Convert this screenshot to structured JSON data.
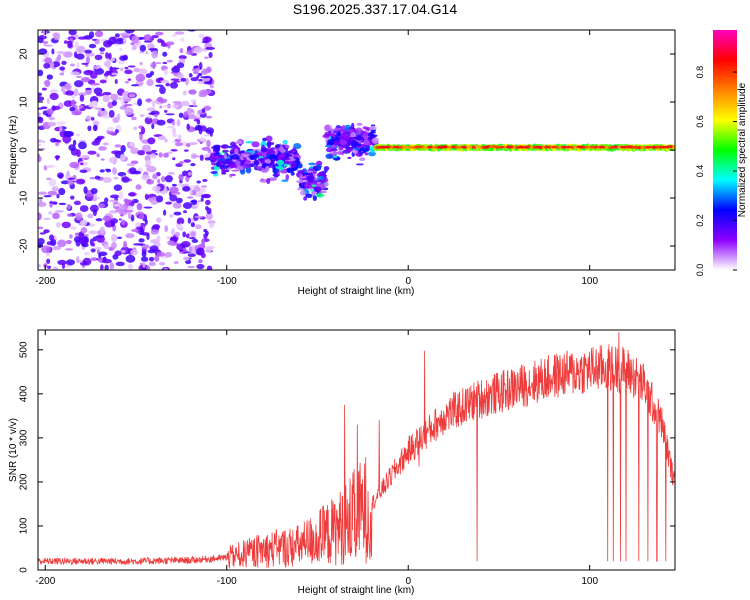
{
  "title": "S196.2025.337.17.04.G14",
  "chart_data": [
    {
      "type": "heatmap",
      "title": "S196.2025.337.17.04.G14",
      "xlabel": "Height of straight line (km)",
      "ylabel": "Frequency (Hz)",
      "xlim": [
        -204,
        147
      ],
      "ylim": [
        -25,
        25
      ],
      "xticks": [
        -200,
        -100,
        0,
        100
      ],
      "yticks": [
        -20,
        -10,
        0,
        10,
        20
      ],
      "colorbar": {
        "label": "Normalized spectral amplitude",
        "range": [
          0,
          0.97
        ],
        "ticks": [
          "0.0",
          "0.2",
          "0.4",
          "0.6",
          "0.8"
        ],
        "colors": [
          "#ffffff",
          "#8c00ff",
          "#0000ff",
          "#00ffff",
          "#00ff00",
          "#ffff00",
          "#ff8000",
          "#ff0000",
          "#ff00c0"
        ]
      },
      "regions": [
        {
          "name": "noise",
          "x": [
            -204,
            -108
          ],
          "f": [
            -25,
            25
          ],
          "amplitude": 0.12
        },
        {
          "name": "transition",
          "x": [
            -108,
            -18
          ],
          "f": [
            -13,
            8
          ],
          "amplitude": 0.25
        },
        {
          "name": "signal",
          "x": [
            -18,
            147
          ],
          "f": [
            -0.5,
            1.5
          ],
          "amplitude": 0.85
        }
      ]
    },
    {
      "type": "line",
      "xlabel": "Height of straight line (km)",
      "ylabel": "SNR (10 * v/v)",
      "xlim": [
        -204,
        147
      ],
      "ylim": [
        0,
        545
      ],
      "xticks": [
        -200,
        -100,
        0,
        100
      ],
      "yticks": [
        0,
        100,
        200,
        300,
        400,
        500
      ],
      "color": "#ee3b3b",
      "series": [
        {
          "name": "SNR envelope",
          "x": [
            -204,
            -150,
            -120,
            -100,
            -80,
            -60,
            -40,
            -20,
            0,
            20,
            40,
            60,
            80,
            100,
            110,
            120,
            130,
            140,
            147
          ],
          "y": [
            20,
            20,
            22,
            28,
            45,
            55,
            90,
            150,
            270,
            350,
            390,
            415,
            440,
            455,
            460,
            455,
            420,
            330,
            190
          ]
        }
      ],
      "dips": [
        {
          "x": 38,
          "y": 20
        },
        {
          "x": 110,
          "y": 25
        },
        {
          "x": 113,
          "y": 25
        },
        {
          "x": 117,
          "y": 25
        },
        {
          "x": 120,
          "y": 25
        },
        {
          "x": 127,
          "y": 25
        },
        {
          "x": 132,
          "y": 25
        },
        {
          "x": 137,
          "y": 25
        },
        {
          "x": 142,
          "y": 25
        }
      ],
      "spikes": [
        {
          "x": 6,
          "y": 235
        },
        {
          "x": 9,
          "y": 498
        },
        {
          "x": -35,
          "y": 375
        },
        {
          "x": -28,
          "y": 330
        },
        {
          "x": -16,
          "y": 340
        },
        {
          "x": 116,
          "y": 540
        }
      ]
    }
  ]
}
